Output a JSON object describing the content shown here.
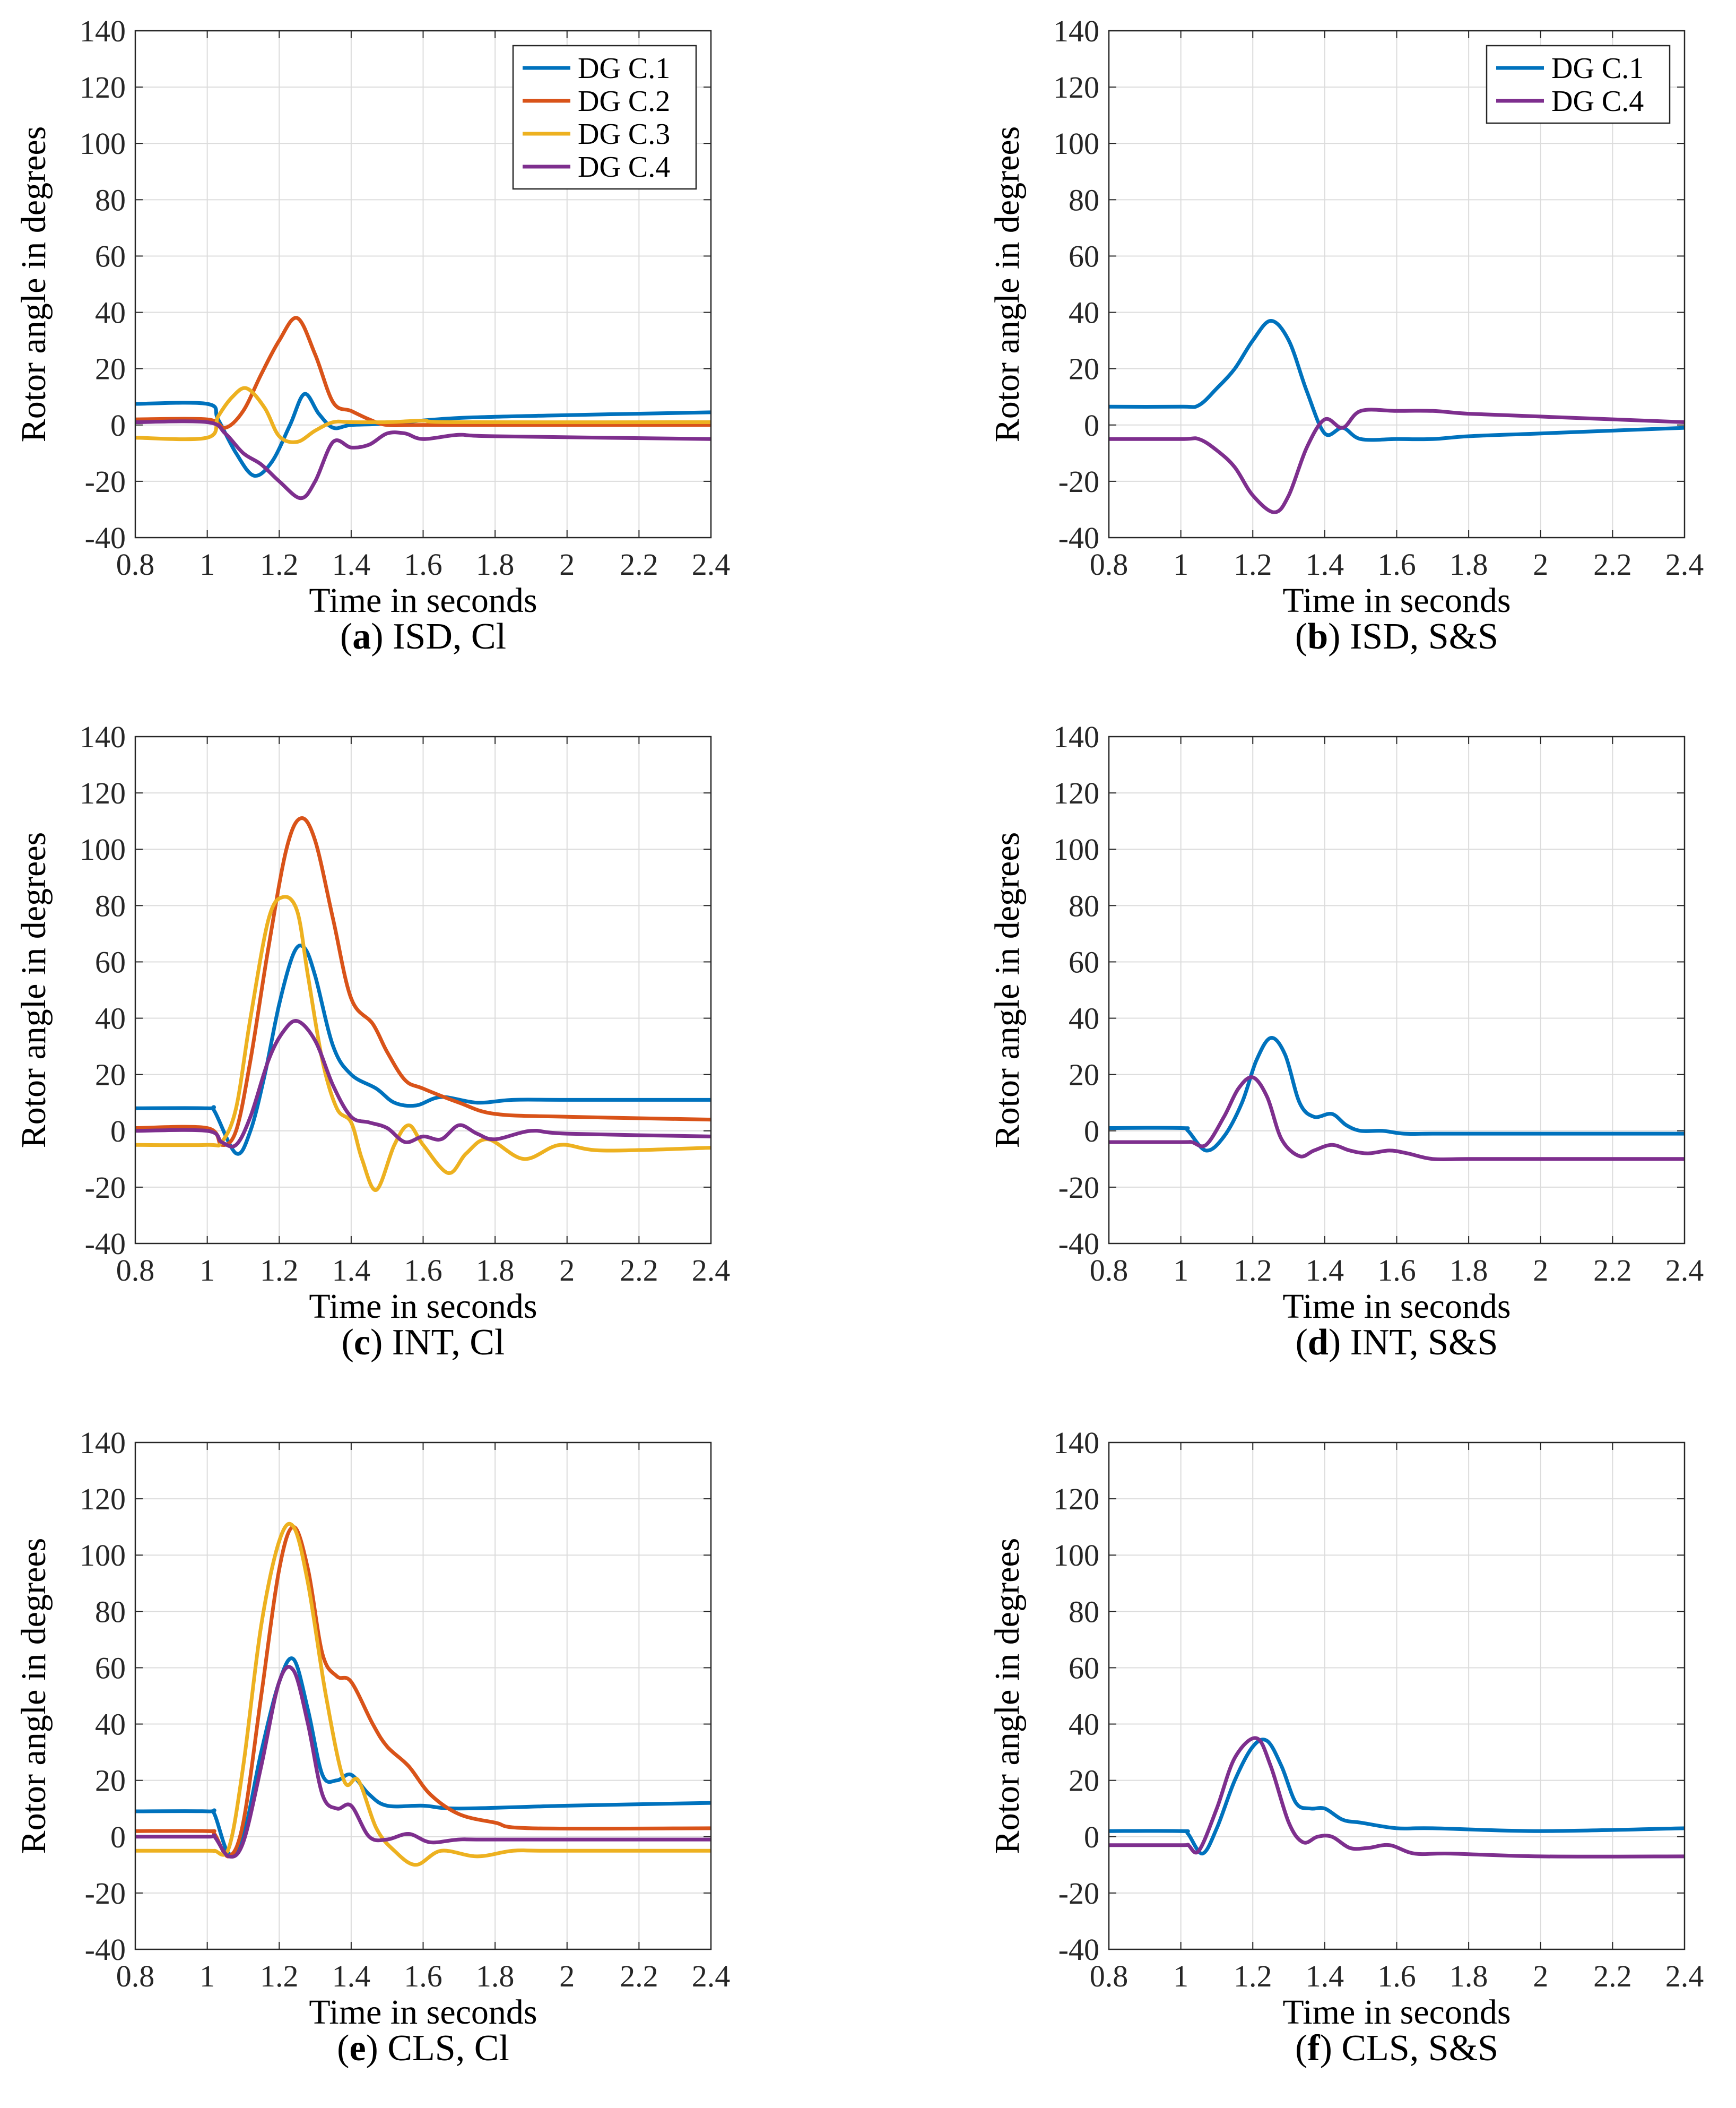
{
  "colors": {
    "DG C.1": "#0072BD",
    "DG C.2": "#D95319",
    "DG C.3": "#EDB120",
    "DG C.4": "#7E2F8E"
  },
  "chart_data": [
    {
      "type": "line",
      "caption_letter": "a",
      "caption_text": "ISD, Cl",
      "xlabel": "Time in seconds",
      "ylabel": "Rotor angle in degrees",
      "xlim": [
        0.8,
        2.4
      ],
      "ylim": [
        -40,
        140
      ],
      "xticks": [
        "0.8",
        "1",
        "1.2",
        "1.4",
        "1.6",
        "1.8",
        "2",
        "2.2",
        "2.4"
      ],
      "yticks": [
        "-40",
        "-20",
        "0",
        "20",
        "40",
        "60",
        "80",
        "100",
        "120",
        "140"
      ],
      "grid": true,
      "legend": "top-right",
      "series": [
        {
          "name": "DG C.1",
          "x": [
            0.8,
            1.0,
            1.03,
            1.08,
            1.13,
            1.18,
            1.23,
            1.27,
            1.31,
            1.35,
            1.4,
            1.5,
            1.7,
            2.0,
            2.4
          ],
          "y": [
            7.5,
            7.5,
            2,
            -10,
            -18,
            -13,
            0,
            11,
            4,
            -1,
            0,
            0.5,
            2.5,
            3.5,
            4.5
          ]
        },
        {
          "name": "DG C.2",
          "x": [
            0.8,
            1.0,
            1.05,
            1.1,
            1.15,
            1.2,
            1.25,
            1.3,
            1.35,
            1.4,
            1.45,
            1.5,
            1.6,
            2.0,
            2.4
          ],
          "y": [
            2,
            2,
            -1,
            5,
            18,
            30,
            38,
            25,
            8,
            5,
            2,
            0,
            0,
            0,
            0
          ]
        },
        {
          "name": "DG C.3",
          "x": [
            0.8,
            1.0,
            1.03,
            1.07,
            1.11,
            1.16,
            1.2,
            1.25,
            1.3,
            1.35,
            1.4,
            1.5,
            1.6,
            1.7,
            2.4
          ],
          "y": [
            -4.5,
            -4.5,
            3,
            10,
            13,
            6,
            -4,
            -6,
            -2,
            1,
            1,
            1,
            1.5,
            1,
            1
          ]
        },
        {
          "name": "DG C.4",
          "x": [
            0.8,
            1.0,
            1.05,
            1.1,
            1.15,
            1.2,
            1.26,
            1.3,
            1.35,
            1.4,
            1.45,
            1.5,
            1.55,
            1.6,
            1.7,
            1.8,
            2.4
          ],
          "y": [
            1,
            1,
            -3,
            -10,
            -14,
            -20,
            -26,
            -20,
            -6,
            -8,
            -7,
            -3,
            -3,
            -5,
            -3.5,
            -4,
            -5
          ]
        }
      ]
    },
    {
      "type": "line",
      "caption_letter": "b",
      "caption_text": "ISD, S&S",
      "xlabel": "Time in seconds",
      "ylabel": "Rotor angle in degrees",
      "xlim": [
        0.8,
        2.4
      ],
      "ylim": [
        -40,
        140
      ],
      "xticks": [
        "0.8",
        "1",
        "1.2",
        "1.4",
        "1.6",
        "1.8",
        "2",
        "2.2",
        "2.4"
      ],
      "yticks": [
        "-40",
        "-20",
        "0",
        "20",
        "40",
        "60",
        "80",
        "100",
        "120",
        "140"
      ],
      "grid": true,
      "legend": "top-right",
      "series": [
        {
          "name": "DG C.1",
          "x": [
            0.8,
            1.0,
            1.05,
            1.1,
            1.15,
            1.2,
            1.25,
            1.3,
            1.35,
            1.4,
            1.45,
            1.5,
            1.6,
            1.7,
            1.8,
            2.0,
            2.4
          ],
          "y": [
            6.5,
            6.5,
            7,
            13,
            20,
            30,
            37,
            30,
            12,
            -3,
            -1,
            -5,
            -5,
            -5,
            -4,
            -3,
            -1
          ]
        },
        {
          "name": "DG C.4",
          "x": [
            0.8,
            1.0,
            1.05,
            1.1,
            1.15,
            1.2,
            1.26,
            1.3,
            1.35,
            1.4,
            1.45,
            1.5,
            1.6,
            1.7,
            1.8,
            2.0,
            2.4
          ],
          "y": [
            -5,
            -5,
            -5,
            -9,
            -15,
            -25,
            -31,
            -25,
            -8,
            2,
            -1,
            5,
            5,
            5,
            4,
            3,
            1
          ]
        }
      ]
    },
    {
      "type": "line",
      "caption_letter": "c",
      "caption_text": "INT, Cl",
      "xlabel": "Time in seconds",
      "ylabel": "Rotor angle in degrees",
      "xlim": [
        0.8,
        2.4
      ],
      "ylim": [
        -40,
        140
      ],
      "xticks": [
        "0.8",
        "1",
        "1.2",
        "1.4",
        "1.6",
        "1.8",
        "2",
        "2.2",
        "2.4"
      ],
      "yticks": [
        "-40",
        "-20",
        "0",
        "20",
        "40",
        "60",
        "80",
        "100",
        "120",
        "140"
      ],
      "grid": true,
      "legend": "none",
      "series": [
        {
          "name": "DG C.1",
          "x": [
            0.8,
            1.0,
            1.02,
            1.08,
            1.12,
            1.16,
            1.2,
            1.24,
            1.27,
            1.3,
            1.35,
            1.4,
            1.47,
            1.52,
            1.58,
            1.65,
            1.75,
            1.85,
            2.0,
            2.4
          ],
          "y": [
            8,
            8,
            7,
            -8,
            0,
            20,
            45,
            63,
            65,
            55,
            30,
            20,
            15,
            10,
            9,
            12,
            10,
            11,
            11,
            11
          ]
        },
        {
          "name": "DG C.2",
          "x": [
            0.8,
            1.0,
            1.04,
            1.08,
            1.12,
            1.17,
            1.22,
            1.26,
            1.3,
            1.35,
            1.4,
            1.46,
            1.5,
            1.55,
            1.6,
            1.7,
            1.8,
            2.0,
            2.4
          ],
          "y": [
            1,
            1,
            -5,
            0,
            25,
            65,
            100,
            111,
            103,
            75,
            47,
            38,
            28,
            18,
            15,
            10,
            6,
            5,
            4
          ]
        },
        {
          "name": "DG C.3",
          "x": [
            0.8,
            1.0,
            1.04,
            1.08,
            1.12,
            1.17,
            1.21,
            1.25,
            1.28,
            1.32,
            1.36,
            1.4,
            1.43,
            1.47,
            1.52,
            1.56,
            1.6,
            1.67,
            1.72,
            1.78,
            1.88,
            1.98,
            2.1,
            2.4
          ],
          "y": [
            -5,
            -5,
            -4,
            8,
            40,
            75,
            83,
            78,
            55,
            25,
            8,
            3,
            -10,
            -21,
            -5,
            2,
            -5,
            -15,
            -8,
            -3,
            -10,
            -5,
            -7,
            -6
          ]
        },
        {
          "name": "DG C.4",
          "x": [
            0.8,
            1.0,
            1.04,
            1.08,
            1.12,
            1.17,
            1.21,
            1.25,
            1.3,
            1.35,
            1.4,
            1.45,
            1.5,
            1.55,
            1.6,
            1.65,
            1.7,
            1.75,
            1.8,
            1.9,
            2.0,
            2.4
          ],
          "y": [
            0,
            0,
            -4,
            -5,
            5,
            25,
            35,
            39,
            32,
            16,
            5,
            3,
            1,
            -4,
            -2,
            -3,
            2,
            -1,
            -3,
            0,
            -1,
            -2
          ]
        }
      ]
    },
    {
      "type": "line",
      "caption_letter": "d",
      "caption_text": "INT, S&S",
      "xlabel": "Time in seconds",
      "ylabel": "Rotor angle in degrees",
      "xlim": [
        0.8,
        2.4
      ],
      "ylim": [
        -40,
        140
      ],
      "xticks": [
        "0.8",
        "1",
        "1.2",
        "1.4",
        "1.6",
        "1.8",
        "2",
        "2.2",
        "2.4"
      ],
      "yticks": [
        "-40",
        "-20",
        "0",
        "20",
        "40",
        "60",
        "80",
        "100",
        "120",
        "140"
      ],
      "grid": true,
      "legend": "none",
      "series": [
        {
          "name": "DG C.1",
          "x": [
            0.8,
            1.0,
            1.02,
            1.07,
            1.12,
            1.17,
            1.21,
            1.25,
            1.29,
            1.33,
            1.37,
            1.42,
            1.46,
            1.5,
            1.56,
            1.62,
            1.7,
            1.8,
            2.0,
            2.4
          ],
          "y": [
            1,
            1,
            0,
            -7,
            -2,
            10,
            25,
            33,
            27,
            10,
            5,
            6,
            2,
            0,
            0,
            -1,
            -1,
            -1,
            -1,
            -1
          ]
        },
        {
          "name": "DG C.4",
          "x": [
            0.8,
            1.0,
            1.03,
            1.07,
            1.12,
            1.16,
            1.2,
            1.24,
            1.28,
            1.33,
            1.37,
            1.42,
            1.47,
            1.52,
            1.58,
            1.63,
            1.7,
            1.8,
            2.0,
            2.4
          ],
          "y": [
            -4,
            -4,
            -4,
            -5,
            5,
            15,
            19,
            12,
            -3,
            -9,
            -7,
            -5,
            -7,
            -8,
            -7,
            -8,
            -10,
            -10,
            -10,
            -10
          ]
        }
      ]
    },
    {
      "type": "line",
      "caption_letter": "e",
      "caption_text": "CLS, Cl",
      "xlabel": "Time in seconds",
      "ylabel": "Rotor angle in degrees",
      "xlim": [
        0.8,
        2.4
      ],
      "ylim": [
        -40,
        140
      ],
      "xticks": [
        "0.8",
        "1",
        "1.2",
        "1.4",
        "1.6",
        "1.8",
        "2",
        "2.2",
        "2.4"
      ],
      "yticks": [
        "-40",
        "-20",
        "0",
        "20",
        "40",
        "60",
        "80",
        "100",
        "120",
        "140"
      ],
      "grid": true,
      "legend": "none",
      "series": [
        {
          "name": "DG C.1",
          "x": [
            0.8,
            1.0,
            1.02,
            1.06,
            1.1,
            1.15,
            1.2,
            1.24,
            1.28,
            1.32,
            1.36,
            1.4,
            1.45,
            1.5,
            1.6,
            1.7,
            2.0,
            2.4
          ],
          "y": [
            9,
            9,
            8,
            -6,
            0,
            30,
            55,
            63,
            45,
            22,
            20,
            22,
            15,
            11,
            11,
            10,
            11,
            12
          ]
        },
        {
          "name": "DG C.2",
          "x": [
            0.8,
            1.0,
            1.02,
            1.06,
            1.1,
            1.15,
            1.2,
            1.24,
            1.28,
            1.32,
            1.36,
            1.4,
            1.46,
            1.5,
            1.56,
            1.62,
            1.7,
            1.8,
            1.9,
            2.4
          ],
          "y": [
            2,
            2,
            1,
            -7,
            5,
            50,
            95,
            110,
            95,
            65,
            57,
            55,
            40,
            32,
            25,
            15,
            8,
            5,
            3,
            3
          ]
        },
        {
          "name": "DG C.3",
          "x": [
            0.8,
            1.0,
            1.02,
            1.06,
            1.1,
            1.15,
            1.2,
            1.24,
            1.28,
            1.33,
            1.38,
            1.42,
            1.47,
            1.52,
            1.58,
            1.65,
            1.75,
            1.85,
            1.95,
            2.4
          ],
          "y": [
            -5,
            -5,
            -5,
            -4,
            25,
            75,
            105,
            110,
            90,
            50,
            20,
            20,
            3,
            -5,
            -10,
            -5,
            -7,
            -5,
            -5,
            -5
          ]
        },
        {
          "name": "DG C.4",
          "x": [
            0.8,
            1.0,
            1.02,
            1.06,
            1.1,
            1.15,
            1.2,
            1.24,
            1.28,
            1.32,
            1.36,
            1.4,
            1.45,
            1.5,
            1.56,
            1.62,
            1.7,
            1.8,
            2.4
          ],
          "y": [
            0,
            0,
            0,
            -7,
            -2,
            25,
            55,
            59,
            40,
            15,
            10,
            11,
            0,
            -1,
            1,
            -2,
            -1,
            -1,
            -1
          ]
        }
      ]
    },
    {
      "type": "line",
      "caption_letter": "f",
      "caption_text": "CLS, S&S",
      "xlabel": "Time in seconds",
      "ylabel": "Rotor angle in degrees",
      "xlim": [
        0.8,
        2.4
      ],
      "ylim": [
        -40,
        140
      ],
      "xticks": [
        "0.8",
        "1",
        "1.2",
        "1.4",
        "1.6",
        "1.8",
        "2",
        "2.2",
        "2.4"
      ],
      "yticks": [
        "-40",
        "-20",
        "0",
        "20",
        "40",
        "60",
        "80",
        "100",
        "120",
        "140"
      ],
      "grid": true,
      "legend": "none",
      "series": [
        {
          "name": "DG C.1",
          "x": [
            0.8,
            1.0,
            1.02,
            1.06,
            1.1,
            1.15,
            1.2,
            1.24,
            1.28,
            1.32,
            1.36,
            1.4,
            1.45,
            1.5,
            1.6,
            1.7,
            2.0,
            2.4
          ],
          "y": [
            2,
            2,
            1,
            -6,
            3,
            20,
            32,
            34,
            25,
            12,
            10,
            10,
            6,
            5,
            3,
            3,
            2,
            3
          ]
        },
        {
          "name": "DG C.4",
          "x": [
            0.8,
            1.0,
            1.02,
            1.05,
            1.1,
            1.15,
            1.21,
            1.25,
            1.3,
            1.34,
            1.38,
            1.42,
            1.47,
            1.52,
            1.58,
            1.65,
            1.75,
            2.0,
            2.4
          ],
          "y": [
            -3,
            -3,
            -3,
            -5,
            10,
            28,
            35,
            25,
            5,
            -2,
            0,
            0,
            -4,
            -4,
            -3,
            -6,
            -6,
            -7,
            -7
          ]
        }
      ]
    }
  ]
}
